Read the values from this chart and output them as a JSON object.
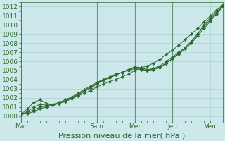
{
  "background_color": "#cde8ea",
  "grid_color": "#b0d8dc",
  "line_color": "#2d6a2d",
  "marker_color": "#2d6a2d",
  "title": "Pression niveau de la mer( hPa )",
  "ylim": [
    999.5,
    1012.5
  ],
  "yticks": [
    1000,
    1001,
    1002,
    1003,
    1004,
    1005,
    1006,
    1007,
    1008,
    1009,
    1010,
    1011,
    1012
  ],
  "xtick_labels": [
    "Mar",
    "Sam",
    "Mer",
    "Jeu",
    "Ven"
  ],
  "xtick_positions": [
    0,
    12,
    18,
    24,
    30
  ],
  "series": [
    [
      1000.2,
      1000.3,
      1000.5,
      1000.8,
      1001.0,
      1001.2,
      1001.4,
      1001.6,
      1001.9,
      1002.2,
      1002.5,
      1002.8,
      1003.2,
      1003.5,
      1003.8,
      1004.0,
      1004.3,
      1004.6,
      1005.0,
      1005.3,
      1005.5,
      1005.8,
      1006.2,
      1006.8,
      1007.2,
      1007.8,
      1008.4,
      1009.0,
      1009.6,
      1010.3,
      1011.0,
      1011.6,
      1012.2
    ],
    [
      1000.2,
      1000.8,
      1001.5,
      1001.8,
      1001.4,
      1001.2,
      1001.4,
      1001.6,
      1002.0,
      1002.4,
      1002.8,
      1003.2,
      1003.6,
      1004.0,
      1004.2,
      1004.5,
      1004.8,
      1005.1,
      1005.3,
      1005.2,
      1005.0,
      1005.2,
      1005.5,
      1006.0,
      1006.5,
      1007.0,
      1007.5,
      1008.2,
      1009.0,
      1010.0,
      1010.8,
      1011.4,
      1012.0
    ],
    [
      1000.2,
      1000.5,
      1001.0,
      1001.3,
      1001.2,
      1001.3,
      1001.5,
      1001.8,
      1002.1,
      1002.5,
      1002.9,
      1003.3,
      1003.7,
      1004.0,
      1004.3,
      1004.6,
      1004.8,
      1005.0,
      1005.2,
      1005.1,
      1005.0,
      1005.1,
      1005.3,
      1005.8,
      1006.3,
      1006.8,
      1007.4,
      1008.0,
      1008.8,
      1009.6,
      1010.4,
      1011.2,
      1012.0
    ],
    [
      1000.2,
      1000.4,
      1000.7,
      1001.0,
      1001.1,
      1001.2,
      1001.4,
      1001.7,
      1002.0,
      1002.3,
      1002.7,
      1003.1,
      1003.5,
      1003.9,
      1004.2,
      1004.5,
      1004.8,
      1005.1,
      1005.4,
      1005.3,
      1005.1,
      1005.2,
      1005.4,
      1005.8,
      1006.3,
      1006.9,
      1007.5,
      1008.2,
      1009.0,
      1009.8,
      1010.6,
      1011.3,
      1012.1
    ]
  ],
  "x_positions": [
    0,
    1,
    2,
    3,
    4,
    5,
    6,
    7,
    8,
    9,
    10,
    11,
    12,
    13,
    14,
    15,
    16,
    17,
    18,
    19,
    20,
    21,
    22,
    23,
    24,
    25,
    26,
    27,
    28,
    29,
    30,
    31,
    32
  ],
  "vline_positions": [
    0,
    12,
    18,
    24,
    32
  ],
  "vline_color": "#4a7a4a",
  "tick_fontsize": 6.5,
  "xlabel_fontsize": 8.0,
  "text_color": "#2d6a2d",
  "minor_grid_color": "#c8e4e6",
  "major_grid_color": "#aad0d4"
}
